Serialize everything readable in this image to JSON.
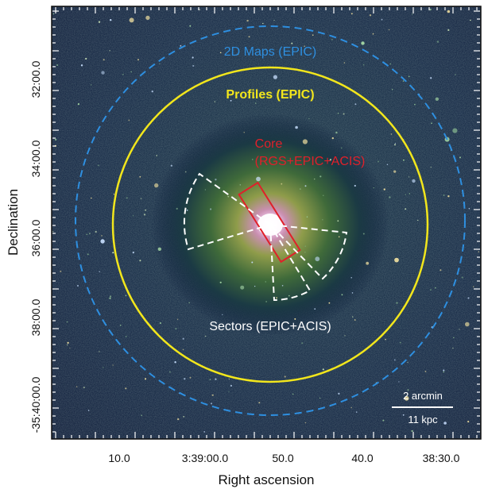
{
  "image": {
    "description_colors": {
      "background": "#0b1a3a",
      "glow_outer": "#6a8a3c",
      "glow_inner": "#c9a24a",
      "core": "#ffffff"
    }
  },
  "axes": {
    "xlabel": "Right ascension",
    "ylabel": "Declination",
    "x_ticks": [
      "10.0",
      "3:39:00.0",
      "50.0",
      "40.0",
      "38:30.0"
    ],
    "y_ticks": [
      "32:00.0",
      "34:00.0",
      "36:00.0",
      "38:00.0",
      "-35:40:00.0"
    ]
  },
  "regions": {
    "maps": {
      "label": "2D Maps (EPIC)",
      "color": "#2e8fe0"
    },
    "profiles": {
      "label": "Profiles (EPIC)",
      "color": "#f2e61c"
    },
    "core": {
      "label_line1": "Core",
      "label_line2": "(RGS+EPIC+ACIS)",
      "color": "#e0202a"
    },
    "sectors": {
      "label": "Sectors (EPIC+ACIS)",
      "color": "#ffffff"
    }
  },
  "scalebar": {
    "top_label": "2 arcmin",
    "bottom_label": "11 kpc"
  }
}
